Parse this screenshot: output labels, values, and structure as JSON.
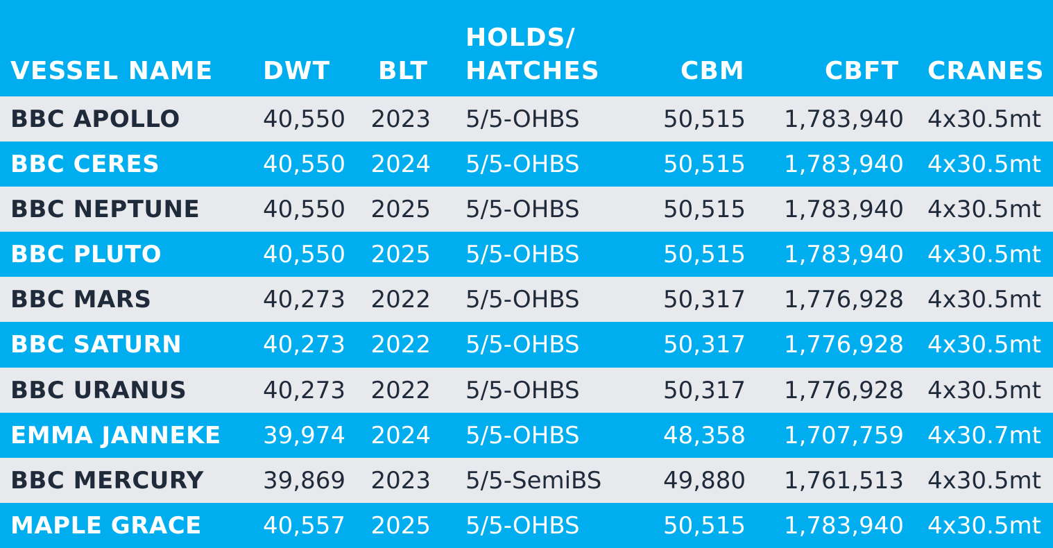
{
  "table": {
    "headers": {
      "vessel_name": "VESSEL NAME",
      "dwt": "DWT",
      "blt": "BLT",
      "holds_line1": "HOLDS/",
      "holds_line2": "HATCHES",
      "cbm": "CBM",
      "cbft": "CBFT",
      "cranes": "CRANES"
    },
    "rows": [
      {
        "name": "BBC APOLLO",
        "dwt": "40,550",
        "blt": "2023",
        "holds": "5/5-OHBS",
        "cbm": "50,515",
        "cbft": "1,783,940",
        "cranes": "4x30.5mt"
      },
      {
        "name": "BBC CERES",
        "dwt": "40,550",
        "blt": "2024",
        "holds": "5/5-OHBS",
        "cbm": "50,515",
        "cbft": "1,783,940",
        "cranes": "4x30.5mt"
      },
      {
        "name": "BBC NEPTUNE",
        "dwt": "40,550",
        "blt": "2025",
        "holds": "5/5-OHBS",
        "cbm": "50,515",
        "cbft": "1,783,940",
        "cranes": "4x30.5mt"
      },
      {
        "name": "BBC PLUTO",
        "dwt": "40,550",
        "blt": "2025",
        "holds": "5/5-OHBS",
        "cbm": "50,515",
        "cbft": "1,783,940",
        "cranes": "4x30.5mt"
      },
      {
        "name": "BBC MARS",
        "dwt": "40,273",
        "blt": "2022",
        "holds": "5/5-OHBS",
        "cbm": "50,317",
        "cbft": "1,776,928",
        "cranes": "4x30.5mt"
      },
      {
        "name": "BBC SATURN",
        "dwt": "40,273",
        "blt": "2022",
        "holds": "5/5-OHBS",
        "cbm": "50,317",
        "cbft": "1,776,928",
        "cranes": "4x30.5mt"
      },
      {
        "name": "BBC URANUS",
        "dwt": "40,273",
        "blt": "2022",
        "holds": "5/5-OHBS",
        "cbm": "50,317",
        "cbft": "1,776,928",
        "cranes": "4x30.5mt"
      },
      {
        "name": "EMMA JANNEKE",
        "dwt": "39,974",
        "blt": "2024",
        "holds": "5/5-OHBS",
        "cbm": "48,358",
        "cbft": "1,707,759",
        "cranes": "4x30.7mt"
      },
      {
        "name": "BBC MERCURY",
        "dwt": "39,869",
        "blt": "2023",
        "holds": "5/5-SemiBS",
        "cbm": "49,880",
        "cbft": "1,761,513",
        "cranes": "4x30.5mt"
      },
      {
        "name": "MAPLE GRACE",
        "dwt": "40,557",
        "blt": "2025",
        "holds": "5/5-OHBS",
        "cbm": "50,515",
        "cbft": "1,783,940",
        "cranes": "4x30.5mt"
      }
    ]
  },
  "colors": {
    "header_bg": "#00aeef",
    "row_light_bg": "#e8e9ec",
    "row_blue_bg": "#00aeef",
    "dark_text": "#1f2a3a",
    "white_text": "#ffffff"
  }
}
